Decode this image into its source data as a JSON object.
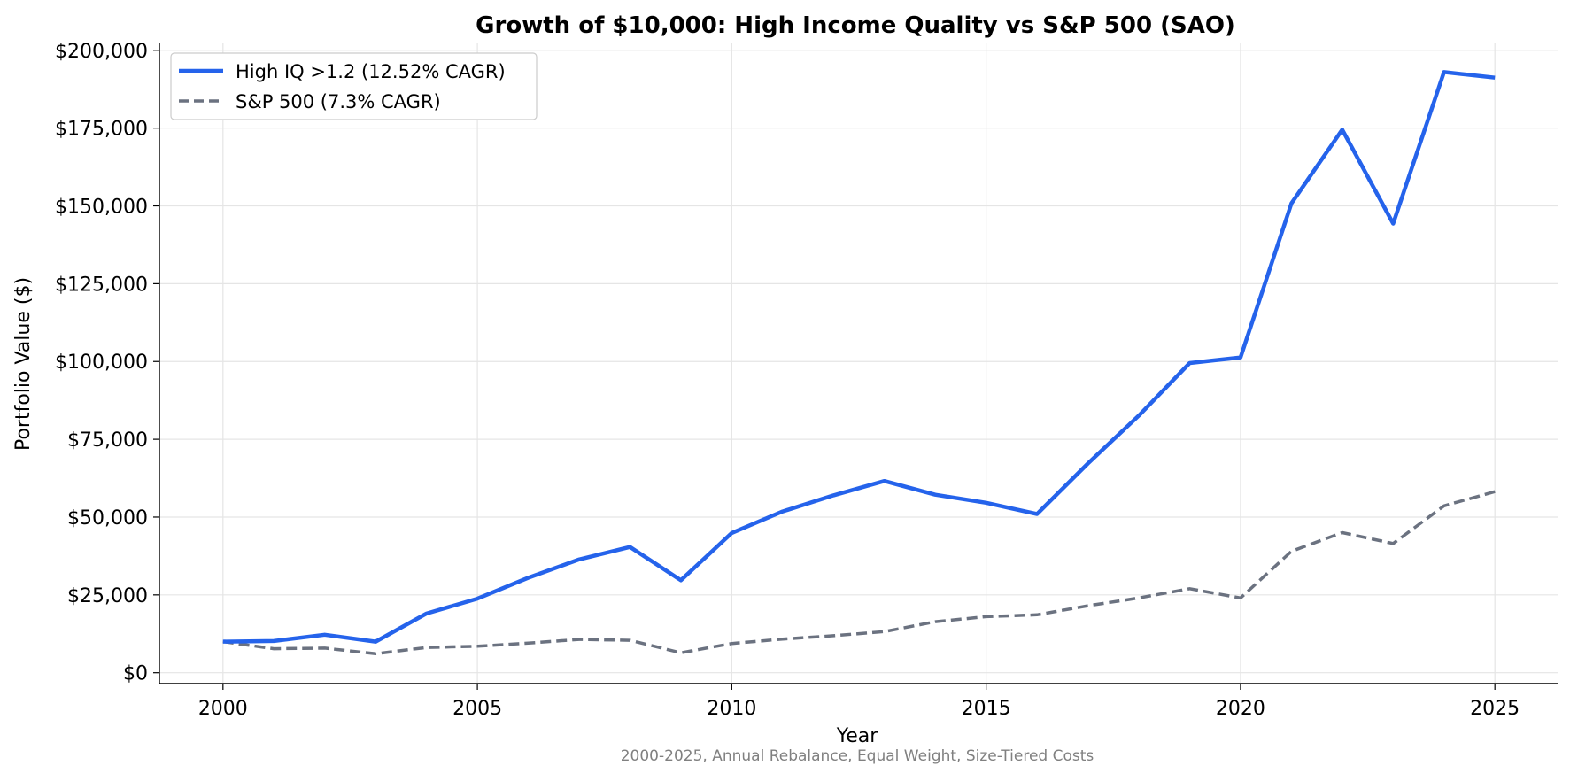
{
  "chart_data": {
    "type": "line",
    "title": "Growth of $10,000: High Income Quality vs S&P 500 (SAO)",
    "subtitle": "2000-2025, Annual Rebalance, Equal Weight, Size-Tiered Costs",
    "xlabel": "Year",
    "ylabel": "Portfolio Value ($)",
    "xlim": [
      1998.75,
      2026.25
    ],
    "ylim": [
      -3500,
      202500
    ],
    "xticks": [
      2000,
      2005,
      2010,
      2015,
      2020,
      2025
    ],
    "yticks": [
      0,
      25000,
      50000,
      75000,
      100000,
      125000,
      150000,
      175000,
      200000
    ],
    "grid": true,
    "legend_position": "top-left",
    "x": [
      2000,
      2001,
      2002,
      2003,
      2004,
      2005,
      2006,
      2007,
      2008,
      2009,
      2010,
      2011,
      2012,
      2013,
      2014,
      2015,
      2016,
      2017,
      2018,
      2019,
      2020,
      2021,
      2022,
      2023,
      2024,
      2025
    ],
    "series": [
      {
        "name": "High IQ >1.2 (12.52% CAGR)",
        "color": "#2563eb",
        "style": "solid",
        "values": [
          10000,
          10200,
          12200,
          10000,
          19000,
          23800,
          30500,
          36400,
          40400,
          29700,
          44900,
          51800,
          57000,
          61600,
          57200,
          54600,
          51000,
          67200,
          82600,
          99500,
          101300,
          150800,
          174500,
          144300,
          193000,
          191200
        ]
      },
      {
        "name": "S&P 500 (7.3% CAGR)",
        "color": "#6b7280",
        "style": "dashed",
        "values": [
          10000,
          7700,
          7900,
          6100,
          8100,
          8500,
          9500,
          10700,
          10400,
          6400,
          9400,
          10800,
          11900,
          13200,
          16400,
          18000,
          18600,
          21500,
          24000,
          27000,
          24000,
          39000,
          45000,
          41500,
          53600,
          58200
        ]
      }
    ]
  }
}
